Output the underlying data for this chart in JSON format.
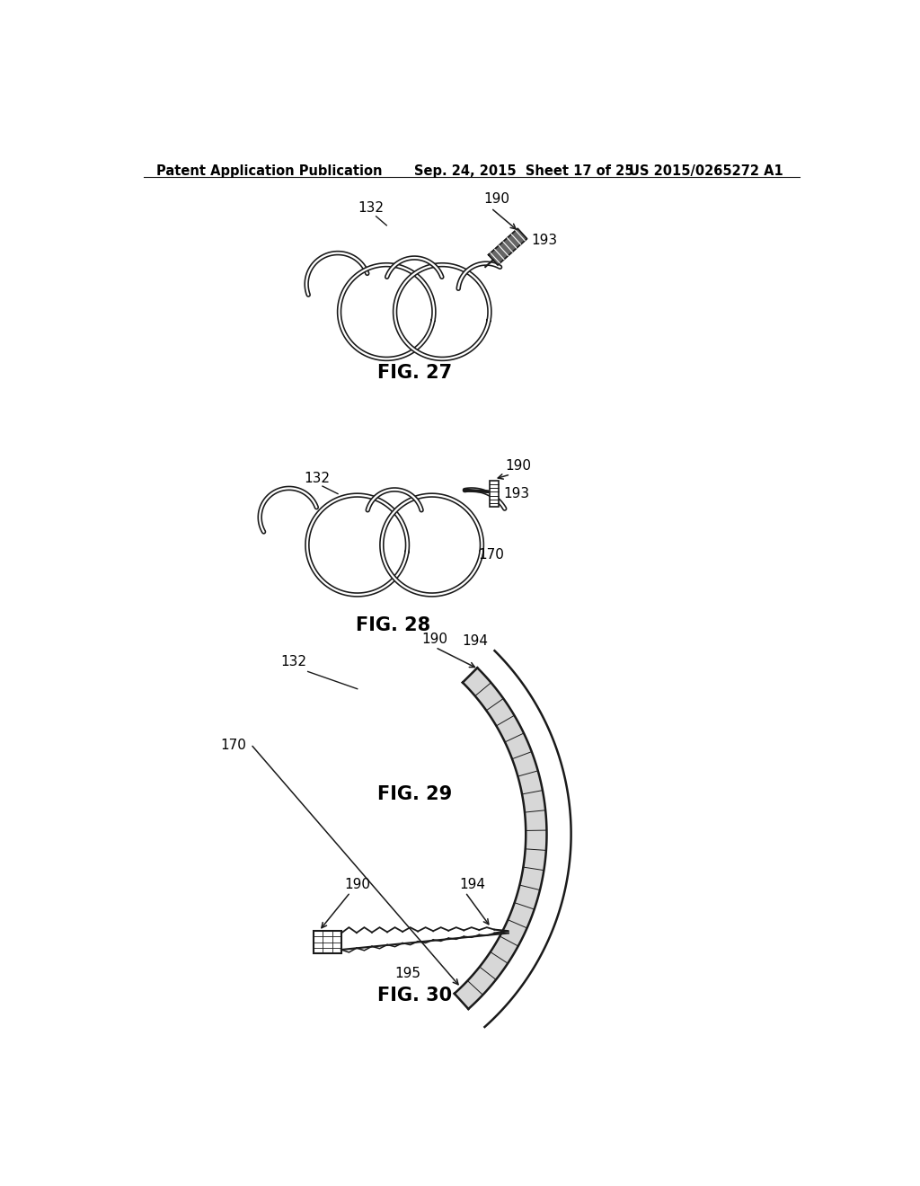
{
  "background_color": "#ffffff",
  "header_left": "Patent Application Publication",
  "header_center": "Sep. 24, 2015  Sheet 17 of 25",
  "header_right": "US 2015/0265272 A1",
  "header_fontsize": 10.5,
  "fig27_label": "FIG. 27",
  "fig28_label": "FIG. 28",
  "fig29_label": "FIG. 29",
  "fig30_label": "FIG. 30",
  "label_fontsize": 15,
  "annotation_fontsize": 11,
  "line_color": "#1a1a1a",
  "lw": 1.8
}
